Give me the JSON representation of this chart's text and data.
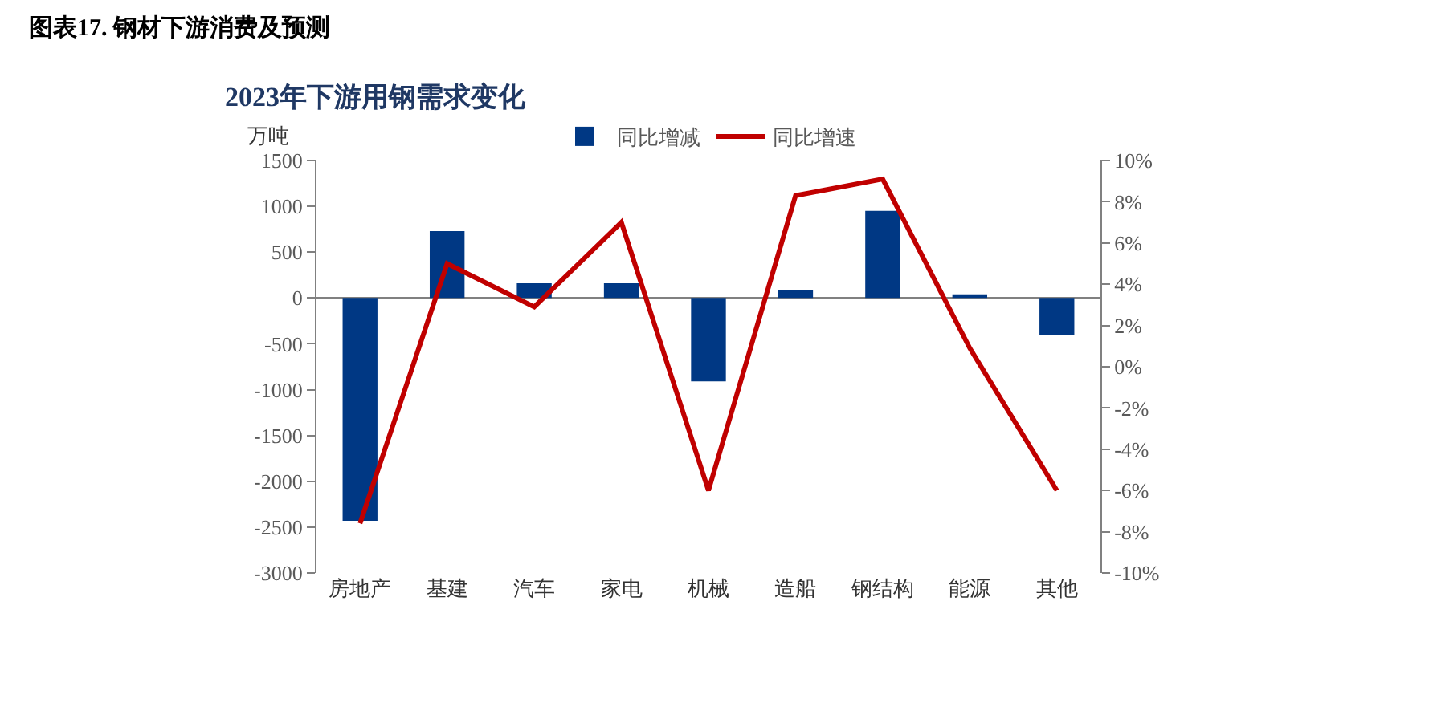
{
  "chart_data": {
    "type": "bar",
    "title": "图表17. 钢材下游消费及预测",
    "subtitle": "2023年下游用钢需求变化",
    "ylabel": "万吨",
    "categories": [
      "房地产",
      "基建",
      "汽车",
      "家电",
      "机械",
      "造船",
      "钢结构",
      "能源",
      "其他"
    ],
    "series": [
      {
        "name": "同比增减",
        "color": "#003884",
        "values": [
          -2430,
          730,
          160,
          160,
          -910,
          90,
          950,
          40,
          -400
        ]
      },
      {
        "name": "同比增速",
        "type": "line",
        "axis": "y2",
        "color": "#c00000",
        "values": [
          -7.6,
          5.0,
          2.9,
          7.0,
          -6.0,
          8.3,
          9.1,
          0.9,
          -6.0
        ]
      }
    ],
    "ylim": [
      -3000,
      1500
    ],
    "yticks": [
      -3000,
      -2500,
      -2000,
      -1500,
      -1000,
      -500,
      0,
      500,
      1000,
      1500
    ],
    "y2lim": [
      -10,
      10
    ],
    "y2ticks": [
      {
        "value": -10,
        "label": "-10%"
      },
      {
        "value": -8,
        "label": "-8%"
      },
      {
        "value": -6,
        "label": "-6%"
      },
      {
        "value": -4,
        "label": "-4%"
      },
      {
        "value": -2,
        "label": "-2%"
      },
      {
        "value": 0,
        "label": "0%"
      },
      {
        "value": 2,
        "label": "2%"
      },
      {
        "value": 4,
        "label": "4%"
      },
      {
        "value": 6,
        "label": "6%"
      },
      {
        "value": 8,
        "label": "8%"
      },
      {
        "value": 10,
        "label": "10%"
      }
    ],
    "ref_lines": [
      {
        "axis": "y",
        "value": 0,
        "color": "#808080"
      }
    ],
    "legend": "top",
    "grid": false,
    "marker": "none",
    "line_style": "solid"
  }
}
